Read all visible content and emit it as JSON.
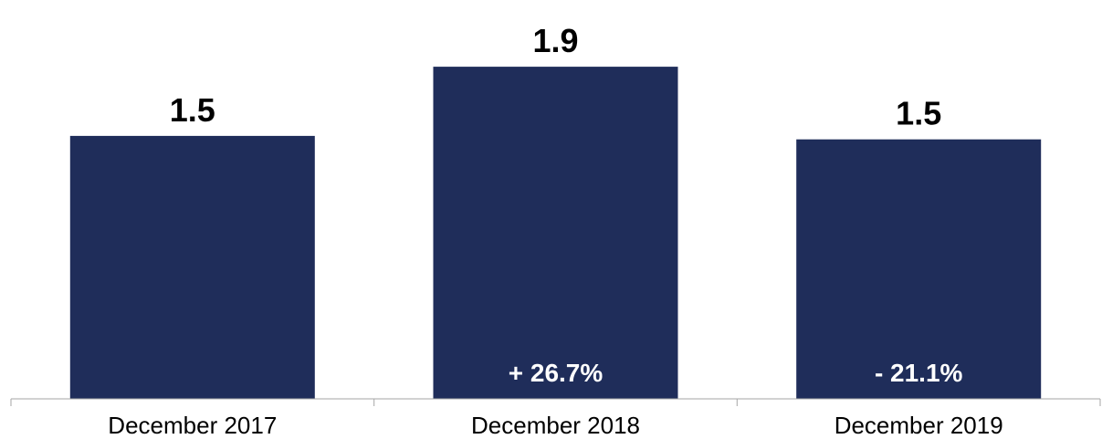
{
  "chart_data": {
    "type": "bar",
    "title": "",
    "xlabel": "",
    "ylabel": "",
    "categories": [
      "December 2017",
      "December 2018",
      "December 2019"
    ],
    "values": [
      1.52,
      1.92,
      1.5
    ],
    "value_labels": [
      "1.5",
      "1.9",
      "1.5"
    ],
    "change_labels": [
      "",
      "+ 26.7%",
      "- 21.1%"
    ],
    "ylim": [
      0,
      2.2
    ],
    "grid": false,
    "legend": "none",
    "colors": {
      "bar": "#1f2d5a",
      "axis": "#a6a6a6",
      "value_text": "#000000",
      "change_text": "#ffffff"
    }
  }
}
